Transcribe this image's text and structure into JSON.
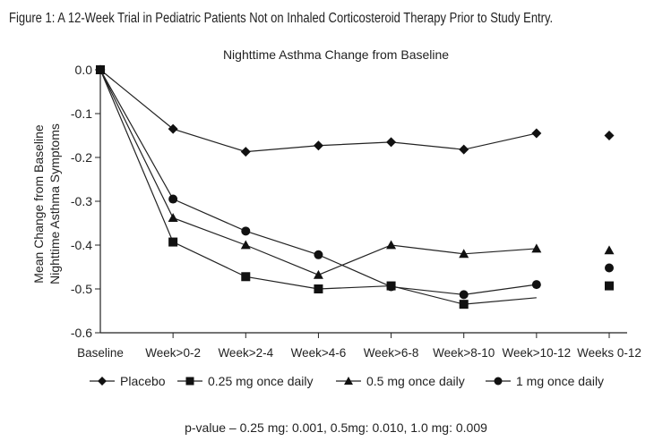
{
  "figure_title": "Figure 1: A 12-Week Trial in Pediatric Patients Not on Inhaled Corticosteroid Therapy Prior to Study Entry.",
  "chart_data": {
    "type": "line",
    "title": "Nighttime Asthma Change from Baseline",
    "ylabel": [
      "Mean Change from Baseline",
      "Nighttime Asthma Symptoms"
    ],
    "xlabel": "",
    "categories": [
      "Baseline",
      "Week>0-2",
      "Week>2-4",
      "Week>4-6",
      "Week>6-8",
      "Week>8-10",
      "Week>10-12",
      "Weeks 0-12"
    ],
    "ylim": [
      -0.6,
      0.0
    ],
    "yticks": [
      0.0,
      -0.1,
      -0.2,
      -0.3,
      -0.4,
      -0.5,
      -0.6
    ],
    "ytick_labels": [
      "0.0",
      "-0.1",
      "-0.2",
      "-0.3",
      "-0.4",
      "-0.5",
      "-0.6"
    ],
    "grid": false,
    "legend_position": "bottom",
    "series": [
      {
        "name": "Placebo",
        "marker": "diamond",
        "values": [
          0.0,
          -0.135,
          -0.187,
          -0.173,
          -0.165,
          -0.182,
          -0.145,
          -0.15
        ]
      },
      {
        "name": "0.25 mg once daily",
        "marker": "square",
        "values": [
          0.0,
          -0.393,
          -0.472,
          -0.5,
          -0.493,
          -0.535,
          -0.52,
          -0.493
        ],
        "marker_hidden_index": [
          6
        ]
      },
      {
        "name": "0.5 mg once daily",
        "marker": "triangle",
        "values": [
          0.0,
          -0.338,
          -0.4,
          -0.468,
          -0.4,
          -0.42,
          -0.408,
          -0.412
        ]
      },
      {
        "name": "1 mg once daily",
        "marker": "circle",
        "values": [
          0.0,
          -0.295,
          -0.368,
          -0.422,
          -0.495,
          -0.513,
          -0.49,
          -0.452
        ]
      }
    ],
    "summary_column_index": 7,
    "footnote": "p-value – 0.25 mg: 0.001, 0.5mg: 0.010, 1.0 mg: 0.009"
  }
}
